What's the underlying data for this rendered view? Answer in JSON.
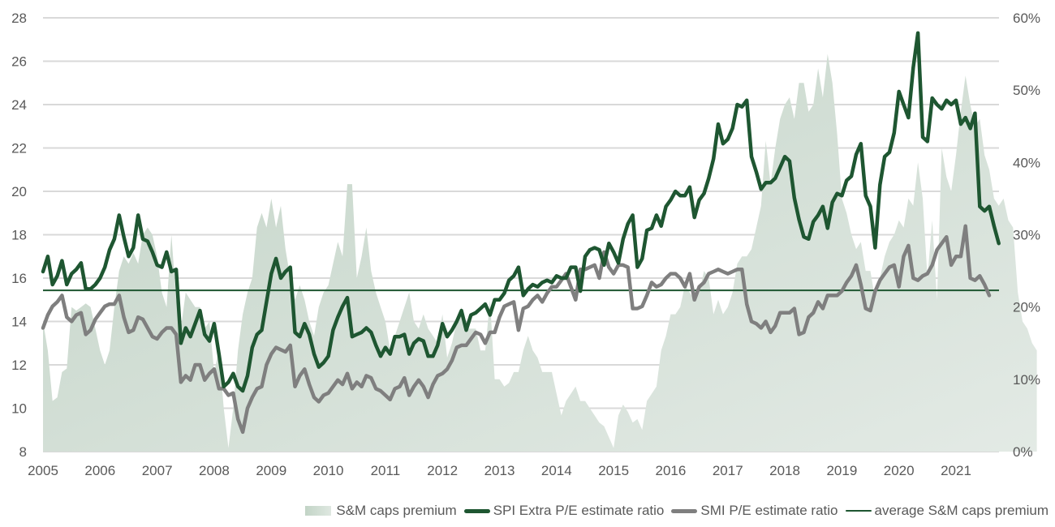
{
  "chart_data": {
    "type": "line",
    "title": "",
    "xlabel": "",
    "ylabel": "",
    "y2label": "",
    "x_start": "2005-01",
    "x_frequency": "monthly",
    "x_tick_labels": [
      "2005",
      "2006",
      "2007",
      "2008",
      "2009",
      "2010",
      "2011",
      "2012",
      "2013",
      "2014",
      "2015",
      "2016",
      "2017",
      "2018",
      "2019",
      "2020",
      "2021"
    ],
    "ylim": [
      8,
      28
    ],
    "y_ticks": [
      "8",
      "10",
      "12",
      "14",
      "16",
      "18",
      "20",
      "22",
      "24",
      "26",
      "28"
    ],
    "y2lim": [
      0,
      60
    ],
    "y2_ticks": [
      "0%",
      "10%",
      "20%",
      "30%",
      "40%",
      "50%",
      "60%"
    ],
    "grid": true,
    "legend_position": "bottom-right",
    "series": [
      {
        "name": "S&M caps premium",
        "type": "area",
        "axis": "right",
        "unit": "%",
        "color": "#c5d6c9",
        "values": [
          18,
          14,
          7,
          7.5,
          11,
          11.5,
          20,
          19.5,
          20,
          20.5,
          20,
          17,
          14,
          12,
          14,
          20,
          25,
          27,
          26,
          27.5,
          26,
          30,
          31,
          30,
          27,
          22,
          20,
          30,
          21,
          17,
          22,
          21,
          20,
          20,
          17,
          18,
          11,
          14,
          6,
          0.5,
          6,
          14,
          19,
          22,
          24,
          31,
          33,
          31,
          35,
          31,
          34,
          28,
          24,
          21,
          23,
          21,
          18,
          16,
          20,
          22,
          23,
          26,
          29,
          27,
          37,
          37,
          24,
          27,
          31,
          25,
          22,
          20,
          18,
          14,
          16,
          18,
          20,
          22,
          18,
          17,
          19,
          17,
          16,
          15,
          19,
          13,
          15,
          18,
          20,
          17,
          17,
          17,
          14,
          14,
          21,
          10,
          10,
          9,
          9.5,
          11,
          11,
          14,
          16,
          14,
          13,
          11,
          11,
          11,
          8,
          5,
          7,
          8,
          9,
          7,
          7,
          6,
          5,
          4,
          3.5,
          2,
          0.5,
          5,
          6.5,
          5.5,
          4,
          4.5,
          3,
          7,
          8,
          9,
          14,
          16,
          19,
          19,
          20,
          23,
          22,
          21,
          22,
          25,
          24,
          19,
          21,
          19,
          20,
          22,
          26,
          27,
          27,
          28,
          31,
          34,
          43,
          37,
          42,
          46,
          48,
          49,
          46,
          51,
          51,
          47,
          48,
          53,
          49,
          55,
          51,
          44,
          35,
          33,
          30,
          28,
          29,
          25,
          25,
          21,
          24,
          27,
          29,
          30,
          32,
          31,
          35,
          34,
          40,
          35,
          24,
          32,
          21,
          42,
          38,
          36,
          41,
          47,
          52,
          48,
          45,
          46,
          41,
          39,
          35,
          34,
          35,
          32,
          31,
          22,
          18,
          17,
          15,
          14
        ]
      },
      {
        "name": "SPI Extra P/E estimate ratio",
        "type": "line",
        "axis": "left",
        "color": "#1e5631",
        "values": [
          16.3,
          17.0,
          15.7,
          16.1,
          16.8,
          15.7,
          16.2,
          16.4,
          16.7,
          15.5,
          15.5,
          15.7,
          16.0,
          16.5,
          17.3,
          17.8,
          18.9,
          17.9,
          17.0,
          17.4,
          18.9,
          17.8,
          17.7,
          17.2,
          16.6,
          16.5,
          17.2,
          16.3,
          16.4,
          13.0,
          13.7,
          13.3,
          13.9,
          14.5,
          13.4,
          13.1,
          13.9,
          12.5,
          11.0,
          11.2,
          11.6,
          11.0,
          10.8,
          11.5,
          12.8,
          13.4,
          13.6,
          14.9,
          16.2,
          16.9,
          16.0,
          16.3,
          16.5,
          13.5,
          13.3,
          13.9,
          13.4,
          12.5,
          11.9,
          12.1,
          12.4,
          13.6,
          14.2,
          14.7,
          15.1,
          13.3,
          13.4,
          13.5,
          13.7,
          13.5,
          12.9,
          12.4,
          12.8,
          12.5,
          13.3,
          13.3,
          13.4,
          12.5,
          13.0,
          13.2,
          13.1,
          12.4,
          12.4,
          12.9,
          13.9,
          13.3,
          13.6,
          14.0,
          14.5,
          13.6,
          14.3,
          14.4,
          14.6,
          14.8,
          14.3,
          15.0,
          15.0,
          15.3,
          15.9,
          16.1,
          16.5,
          15.2,
          15.5,
          15.7,
          15.6,
          15.8,
          15.9,
          15.8,
          16.1,
          16.0,
          16.0,
          16.5,
          16.5,
          15.4,
          17.0,
          17.3,
          17.4,
          17.3,
          16.6,
          17.6,
          17.2,
          16.7,
          17.8,
          18.5,
          18.9,
          16.5,
          16.9,
          18.2,
          18.3,
          18.9,
          18.4,
          19.3,
          19.6,
          20.0,
          19.8,
          19.8,
          20.2,
          18.8,
          19.6,
          19.9,
          20.6,
          21.5,
          23.1,
          22.2,
          22.4,
          22.9,
          24.0,
          23.9,
          24.2,
          21.6,
          20.9,
          20.1,
          20.4,
          20.4,
          20.6,
          21.1,
          21.6,
          21.4,
          19.7,
          18.7,
          17.9,
          17.8,
          18.6,
          18.9,
          19.3,
          18.3,
          19.5,
          19.9,
          19.8,
          20.5,
          20.7,
          21.7,
          22.2,
          19.8,
          19.3,
          17.4,
          20.3,
          21.6,
          21.8,
          22.7,
          24.6,
          24.0,
          23.4,
          25.7,
          27.3,
          22.5,
          22.3,
          24.3,
          24.0,
          23.8,
          24.2,
          24.0,
          24.2,
          23.1,
          23.4,
          22.9,
          23.6,
          19.3,
          19.1,
          19.3,
          18.4,
          17.6
        ]
      },
      {
        "name": "SMI P/E estimate ratio",
        "type": "line",
        "axis": "left",
        "color": "#7f7f7f",
        "values": [
          13.7,
          14.3,
          14.7,
          14.9,
          15.2,
          14.2,
          14.0,
          14.3,
          14.4,
          13.4,
          13.6,
          14.1,
          14.4,
          14.7,
          14.8,
          14.8,
          15.2,
          14.2,
          13.5,
          13.6,
          14.2,
          14.1,
          13.7,
          13.3,
          13.2,
          13.5,
          13.7,
          13.7,
          13.4,
          11.2,
          11.5,
          11.3,
          12.0,
          12.0,
          11.3,
          11.6,
          11.8,
          10.9,
          10.9,
          10.6,
          10.7,
          9.5,
          8.9,
          10.0,
          10.5,
          10.9,
          11.0,
          12.0,
          12.5,
          12.8,
          12.7,
          12.6,
          12.9,
          11.0,
          11.5,
          11.8,
          11.1,
          10.5,
          10.3,
          10.6,
          10.7,
          11.0,
          11.3,
          11.1,
          11.6,
          10.9,
          11.2,
          11.0,
          11.5,
          11.4,
          10.9,
          10.8,
          10.6,
          10.4,
          10.9,
          11.0,
          11.4,
          10.6,
          11.0,
          11.3,
          11.0,
          10.5,
          11.1,
          11.5,
          11.6,
          11.8,
          12.2,
          12.8,
          12.9,
          12.9,
          13.2,
          13.5,
          13.4,
          13.0,
          13.5,
          13.5,
          14.2,
          14.7,
          14.8,
          14.9,
          13.6,
          14.6,
          14.7,
          15.0,
          15.2,
          14.9,
          15.3,
          15.6,
          15.6,
          15.9,
          16.2,
          15.6,
          15.0,
          16.4,
          16.4,
          16.5,
          16.6,
          16.0,
          17.2,
          16.5,
          16.2,
          16.6,
          16.6,
          16.5,
          14.6,
          14.6,
          14.7,
          15.2,
          15.8,
          15.6,
          15.7,
          16.0,
          16.2,
          16.2,
          16.0,
          15.6,
          16.2,
          15.0,
          15.6,
          15.8,
          16.2,
          16.3,
          16.4,
          16.3,
          16.2,
          16.3,
          16.4,
          16.4,
          14.8,
          14.0,
          13.9,
          13.7,
          14.0,
          13.5,
          13.8,
          14.4,
          14.4,
          14.4,
          14.6,
          13.4,
          13.5,
          14.2,
          14.4,
          14.9,
          14.6,
          15.2,
          15.2,
          15.2,
          15.4,
          15.8,
          16.1,
          16.6,
          15.7,
          14.6,
          14.5,
          15.4,
          15.9,
          16.2,
          16.5,
          16.6,
          15.6,
          17.0,
          17.5,
          16.0,
          15.9,
          16.1,
          16.2,
          16.6,
          17.3,
          17.6,
          17.9,
          16.6,
          17.0,
          17.0,
          18.4,
          16.0,
          15.9,
          16.1,
          15.7,
          15.2
        ]
      },
      {
        "name": "average S&M caps premium",
        "type": "hline",
        "axis": "right",
        "color": "#1e5631",
        "value": 22.3
      }
    ]
  },
  "legend": {
    "items": [
      {
        "label": "S&M caps premium"
      },
      {
        "label": "SPI Extra P/E estimate ratio"
      },
      {
        "label": "SMI P/E estimate ratio"
      },
      {
        "label": "average S&M caps premium"
      }
    ]
  }
}
